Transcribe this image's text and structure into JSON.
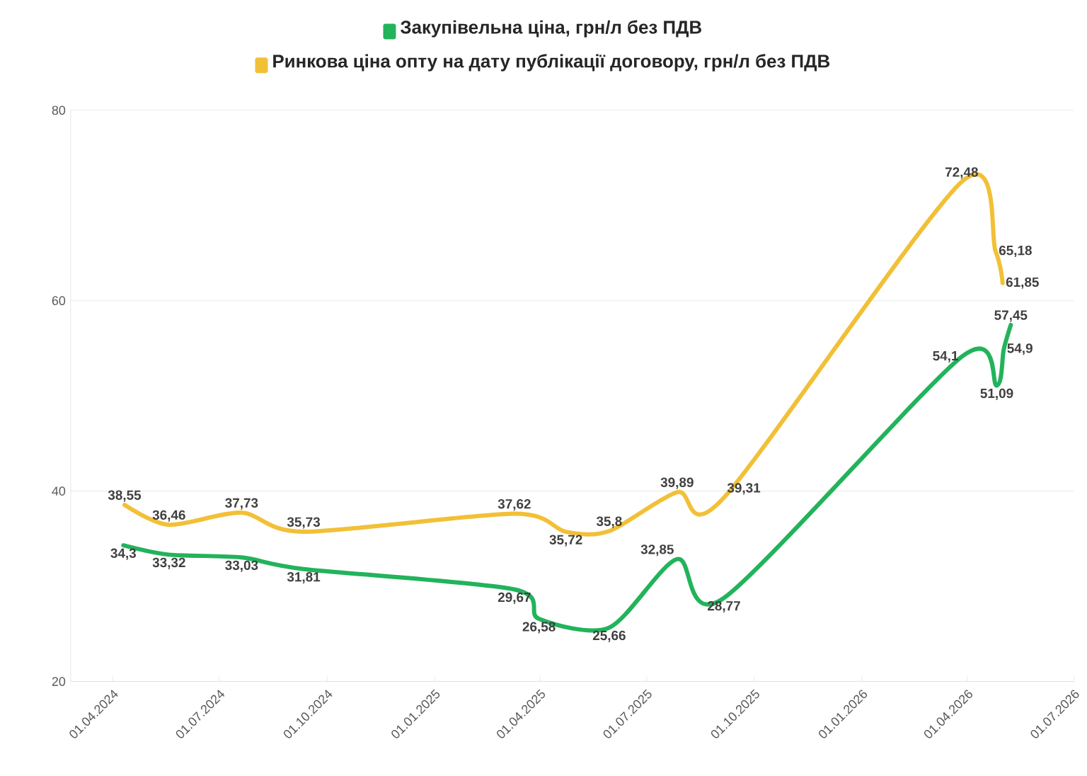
{
  "chart_data": {
    "type": "line",
    "series": [
      {
        "name": "Закупівельна ціна, грн/л без ПДВ",
        "color": "#22b35b",
        "x": [
          "2024-04-10",
          "2024-05-19",
          "2024-07-20",
          "2024-09-11",
          "2025-03-10",
          "2025-03-31",
          "2025-05-30",
          "2025-07-27",
          "2025-09-05",
          "2026-03-27",
          "2026-04-26",
          "2026-05-02",
          "2026-05-08"
        ],
        "values": [
          34.3,
          33.32,
          33.03,
          31.81,
          29.67,
          26.58,
          25.66,
          32.85,
          28.77,
          54.1,
          51.09,
          54.9,
          57.45
        ],
        "value_labels": [
          "34,3",
          "33,32",
          "33,03",
          "31,81",
          "29,67",
          "26,58",
          "25,66",
          "32,85",
          "28,77",
          "54,1",
          "51,09",
          "54,9",
          "57,45"
        ]
      },
      {
        "name": "Ринкова ціна опту на дату публікації договору, грн/л без ПДВ",
        "color": "#f2c037",
        "x": [
          "2024-04-11",
          "2024-05-19",
          "2024-07-20",
          "2024-09-11",
          "2025-03-10",
          "2025-04-23",
          "2025-05-30",
          "2025-07-27",
          "2025-09-05",
          "2026-03-27",
          "2026-04-25",
          "2026-05-01"
        ],
        "values": [
          38.55,
          36.46,
          37.73,
          35.73,
          37.62,
          35.72,
          35.8,
          39.89,
          39.31,
          72.48,
          65.18,
          61.85
        ],
        "value_labels": [
          "38,55",
          "36,46",
          "37,73",
          "35,73",
          "37,62",
          "35,72",
          "35,8",
          "39,89",
          "39,31",
          "72,48",
          "65,18",
          "61,85"
        ]
      }
    ],
    "xlim": [
      "2024-02-25",
      "2026-07-01"
    ],
    "xticks": [
      {
        "value": "2024-04-01",
        "label": "01.04.2024"
      },
      {
        "value": "2024-07-01",
        "label": "01.07.2024"
      },
      {
        "value": "2024-10-01",
        "label": "01.10.2024"
      },
      {
        "value": "2025-01-01",
        "label": "01.01.2025"
      },
      {
        "value": "2025-04-01",
        "label": "01.04.2025"
      },
      {
        "value": "2025-07-01",
        "label": "01.07.2025"
      },
      {
        "value": "2025-10-01",
        "label": "01.10.2025"
      },
      {
        "value": "2026-01-01",
        "label": "01.01.2026"
      },
      {
        "value": "2026-04-01",
        "label": "01.04.2026"
      },
      {
        "value": "2026-07-01",
        "label": "01.07.2026"
      }
    ],
    "ylim": [
      20,
      80
    ],
    "yticks": [
      20,
      40,
      60,
      80
    ],
    "grid": "y",
    "legend": "top",
    "marker": "none",
    "line_style": "solid"
  }
}
